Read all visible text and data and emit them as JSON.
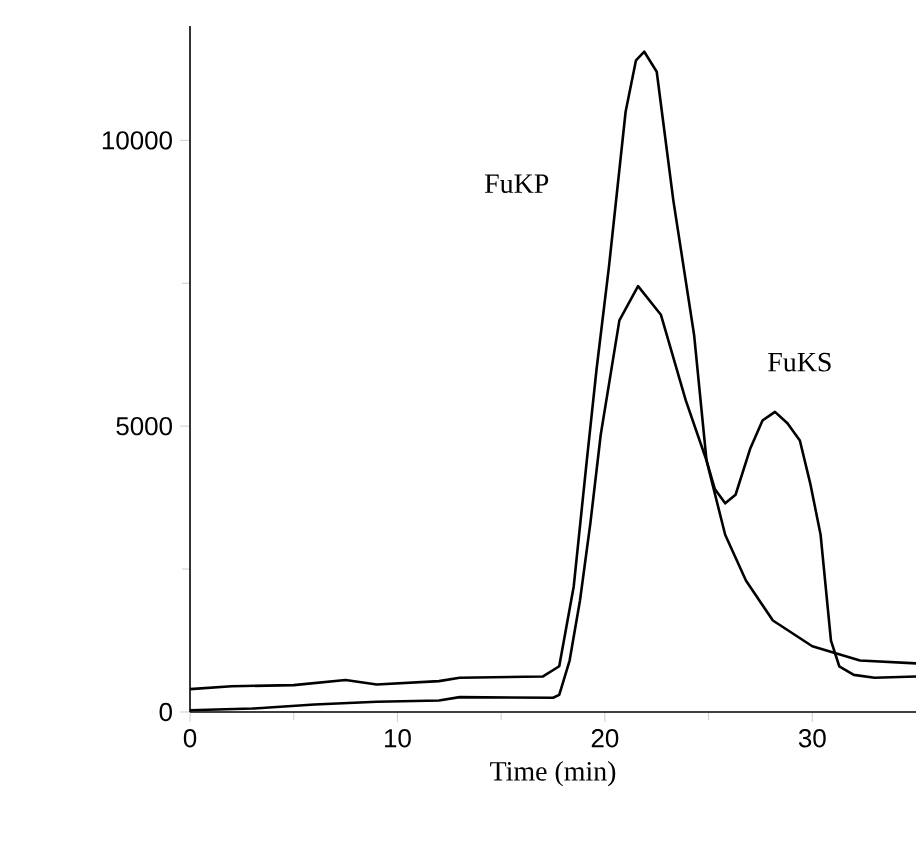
{
  "chart_data": {
    "type": "line",
    "xlabel": "Time (min)",
    "xlim": [
      0,
      35
    ],
    "ylim": [
      0,
      12000
    ],
    "xticks": [
      0,
      10,
      20,
      30
    ],
    "yticks": [
      0,
      5000,
      10000
    ],
    "series": [
      {
        "color": "#000000",
        "x": [
          0,
          2,
          5,
          7.5,
          9,
          12,
          13,
          17,
          17.8,
          18.5,
          19.1,
          19.6,
          20.2,
          21,
          21.5,
          21.9,
          22.5,
          23.3,
          24.3,
          24.9,
          25.3,
          25.8,
          26.3,
          27,
          27.6,
          28.2,
          28.8,
          29.4,
          29.9,
          30.4,
          30.9,
          31.3,
          32,
          33,
          35
        ],
        "values": [
          400,
          450,
          470,
          560,
          480,
          540,
          600,
          620,
          800,
          2200,
          4300,
          6000,
          7800,
          10500,
          11400,
          11550,
          11200,
          8950,
          6600,
          4400,
          3900,
          3650,
          3800,
          4600,
          5100,
          5250,
          5050,
          4750,
          4000,
          3100,
          1250,
          800,
          650,
          600,
          620
        ]
      },
      {
        "color": "#000000",
        "x": [
          0,
          3,
          6,
          9,
          12,
          13,
          17.5,
          17.8,
          18.3,
          18.8,
          19.3,
          19.8,
          20.7,
          21.6,
          22.7,
          23.9,
          24.9,
          25.8,
          26.8,
          28.1,
          30,
          32.3,
          35
        ],
        "values": [
          30,
          60,
          130,
          180,
          200,
          260,
          250,
          300,
          900,
          1950,
          3300,
          4850,
          6850,
          7450,
          6950,
          5450,
          4400,
          3100,
          2300,
          1600,
          1150,
          900,
          850
        ]
      }
    ],
    "annotations": [
      "FuKP",
      "FuKS"
    ]
  }
}
